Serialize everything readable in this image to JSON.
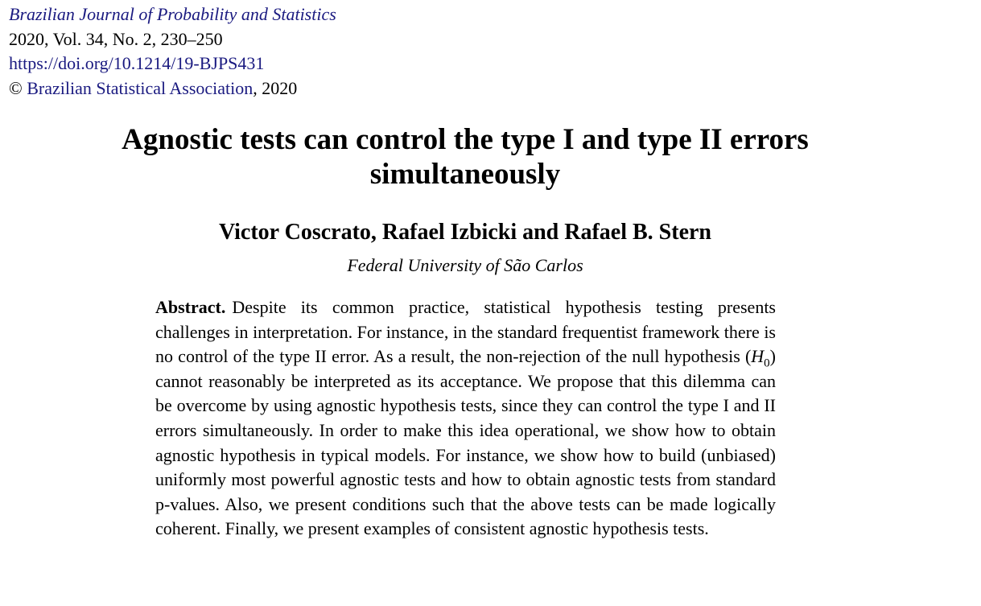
{
  "header": {
    "journal": "Brazilian Journal of Probability and Statistics",
    "volume_line": "2020, Vol. 34, No. 2, 230–250",
    "doi": "https://doi.org/10.1214/19-BJPS431",
    "copyright_symbol": "©",
    "association": "Brazilian Statistical Association",
    "copyright_year": ", 2020"
  },
  "paper": {
    "title_line1": "Agnostic tests can control the type I and type II errors",
    "title_line2": "simultaneously",
    "authors": "Victor Coscrato, Rafael Izbicki and Rafael B. Stern",
    "affiliation": "Federal University of São Carlos"
  },
  "abstract": {
    "label": "Abstract.",
    "text_before": "Despite its common practice, statistical hypothesis testing presents challenges in interpretation. For instance, in the standard frequentist frame­work there is no control of the type II error. As a result, the non-rejection of the null hypothesis (",
    "math_symbol": "H",
    "math_subscript": "0",
    "text_after": ") cannot reasonably be interpreted as its acceptance. We propose that this dilemma can be overcome by using agnostic hypothesis tests, since they can control the type I and II errors simultaneously. In order to make this idea operational, we show how to obtain agnostic hypothesis in typical models. For instance, we show how to build (unbiased) uniformly most powerful agnostic tests and how to obtain agnostic tests from standard p-values. Also, we present conditions such that the above tests can be made logically coherent. Finally, we present examples of consistent agnostic hy­pothesis tests."
  }
}
